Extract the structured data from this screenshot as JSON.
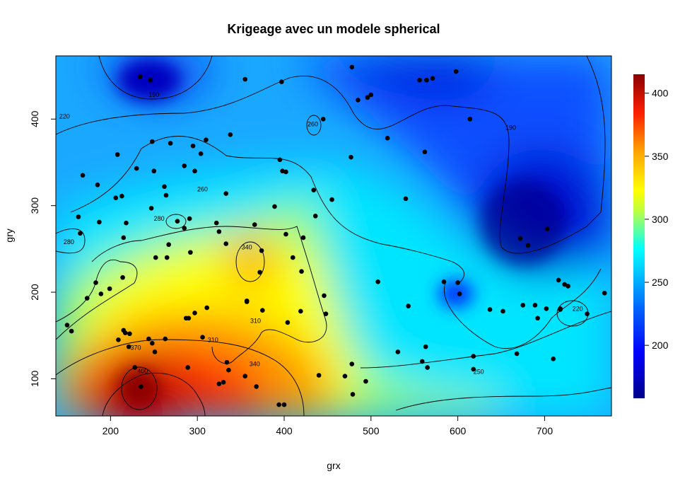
{
  "chart_data": {
    "type": "heatmap",
    "title": "Krigeage avec un modele spherical",
    "xlabel": "grx",
    "ylabel": "gry",
    "xlim": [
      137,
      777
    ],
    "ylim": [
      57,
      473
    ],
    "xticks": [
      "200",
      "300",
      "400",
      "500",
      "600",
      "700"
    ],
    "xtick_values": [
      200,
      300,
      400,
      500,
      600,
      700
    ],
    "yticks": [
      "100",
      "200",
      "300",
      "400"
    ],
    "ytick_values": [
      100,
      200,
      300,
      400
    ],
    "colorbar": {
      "range": [
        158,
        415
      ],
      "ticks": [
        "200",
        "250",
        "300",
        "350",
        "400"
      ],
      "tick_values": [
        200,
        250,
        300,
        350,
        400
      ],
      "colors": [
        "#00008b",
        "#0000ff",
        "#00bfff",
        "#00ffff",
        "#ffff00",
        "#ffa500",
        "#ff0000",
        "#8b0000"
      ]
    },
    "contour_labels": [
      {
        "text": "190",
        "x": 250,
        "y": 428
      },
      {
        "text": "190",
        "x": 661,
        "y": 390
      },
      {
        "text": "220",
        "x": 147,
        "y": 403
      },
      {
        "text": "260",
        "x": 433,
        "y": 394
      },
      {
        "text": "260",
        "x": 306,
        "y": 319
      },
      {
        "text": "280",
        "x": 152,
        "y": 258
      },
      {
        "text": "280",
        "x": 256,
        "y": 285
      },
      {
        "text": "340",
        "x": 357,
        "y": 252
      },
      {
        "text": "310",
        "x": 367,
        "y": 167
      },
      {
        "text": "310",
        "x": 318,
        "y": 145
      },
      {
        "text": "340",
        "x": 366,
        "y": 117
      },
      {
        "text": "370",
        "x": 229,
        "y": 136
      },
      {
        "text": "400",
        "x": 237,
        "y": 109
      },
      {
        "text": "250",
        "x": 624,
        "y": 108
      },
      {
        "text": "220",
        "x": 738,
        "y": 181
      }
    ],
    "points": [
      [
        234,
        449
      ],
      [
        246,
        445
      ],
      [
        355,
        446
      ],
      [
        397,
        443
      ],
      [
        478,
        460
      ],
      [
        485,
        422
      ],
      [
        496,
        425
      ],
      [
        500,
        428
      ],
      [
        556,
        445
      ],
      [
        564,
        445
      ],
      [
        571,
        447
      ],
      [
        598,
        455
      ],
      [
        614,
        400
      ],
      [
        445,
        400
      ],
      [
        338,
        382
      ],
      [
        310,
        376
      ],
      [
        295,
        369
      ],
      [
        269,
        372
      ],
      [
        248,
        374
      ],
      [
        304,
        360
      ],
      [
        208,
        359
      ],
      [
        230,
        343
      ],
      [
        250,
        340
      ],
      [
        285,
        346
      ],
      [
        297,
        340
      ],
      [
        395,
        353
      ],
      [
        398,
        340
      ],
      [
        402,
        339
      ],
      [
        477,
        356
      ],
      [
        519,
        378
      ],
      [
        562,
        362
      ],
      [
        168,
        335
      ],
      [
        185,
        324
      ],
      [
        213,
        311
      ],
      [
        206,
        309
      ],
      [
        262,
        322
      ],
      [
        264,
        312
      ],
      [
        333,
        314
      ],
      [
        434,
        318
      ],
      [
        455,
        307
      ],
      [
        389,
        299
      ],
      [
        540,
        308
      ],
      [
        247,
        297
      ],
      [
        163,
        287
      ],
      [
        187,
        281
      ],
      [
        218,
        280
      ],
      [
        291,
        285
      ],
      [
        277,
        282
      ],
      [
        285,
        274
      ],
      [
        366,
        278
      ],
      [
        322,
        280
      ],
      [
        165,
        268
      ],
      [
        215,
        263
      ],
      [
        325,
        270
      ],
      [
        402,
        267
      ],
      [
        422,
        263
      ],
      [
        267,
        255
      ],
      [
        265,
        240
      ],
      [
        252,
        240
      ],
      [
        292,
        246
      ],
      [
        333,
        256
      ],
      [
        374,
        248
      ],
      [
        410,
        240
      ],
      [
        436,
        288
      ],
      [
        672,
        262
      ],
      [
        681,
        254
      ],
      [
        703,
        273
      ],
      [
        372,
        223
      ],
      [
        420,
        224
      ],
      [
        183,
        211
      ],
      [
        214,
        217
      ],
      [
        508,
        212
      ],
      [
        584,
        212
      ],
      [
        600,
        211
      ],
      [
        602,
        198
      ],
      [
        189,
        198
      ],
      [
        199,
        204
      ],
      [
        173,
        193
      ],
      [
        357,
        190
      ],
      [
        357,
        189
      ],
      [
        446,
        196
      ],
      [
        543,
        184
      ],
      [
        375,
        179
      ],
      [
        419,
        178
      ],
      [
        448,
        175
      ],
      [
        404,
        165
      ],
      [
        311,
        182
      ],
      [
        297,
        176
      ],
      [
        287,
        170
      ],
      [
        290,
        170
      ],
      [
        637,
        180
      ],
      [
        652,
        178
      ],
      [
        675,
        185
      ],
      [
        702,
        181
      ],
      [
        692,
        170
      ],
      [
        689,
        185
      ],
      [
        716,
        214
      ],
      [
        718,
        181
      ],
      [
        723,
        209
      ],
      [
        727,
        207
      ],
      [
        749,
        175
      ],
      [
        769,
        199
      ],
      [
        718,
        180
      ],
      [
        150,
        162
      ],
      [
        155,
        155
      ],
      [
        215,
        156
      ],
      [
        217,
        153
      ],
      [
        222,
        152
      ],
      [
        306,
        148
      ],
      [
        244,
        146
      ],
      [
        248,
        141
      ],
      [
        263,
        146
      ],
      [
        251,
        131
      ],
      [
        531,
        131
      ],
      [
        563,
        137
      ],
      [
        618,
        126
      ],
      [
        668,
        129
      ],
      [
        559,
        120
      ],
      [
        494,
        97
      ],
      [
        618,
        111
      ],
      [
        334,
        119
      ],
      [
        336,
        110
      ],
      [
        355,
        103
      ],
      [
        394,
        70
      ],
      [
        400,
        70
      ],
      [
        440,
        104
      ],
      [
        479,
        82
      ],
      [
        565,
        113
      ],
      [
        478,
        117
      ],
      [
        470,
        103
      ],
      [
        228,
        113
      ],
      [
        235,
        91
      ],
      [
        289,
        113
      ],
      [
        325,
        94
      ],
      [
        330,
        96
      ],
      [
        368,
        91
      ],
      [
        710,
        123
      ],
      [
        221,
        137
      ],
      [
        209,
        145
      ]
    ]
  }
}
